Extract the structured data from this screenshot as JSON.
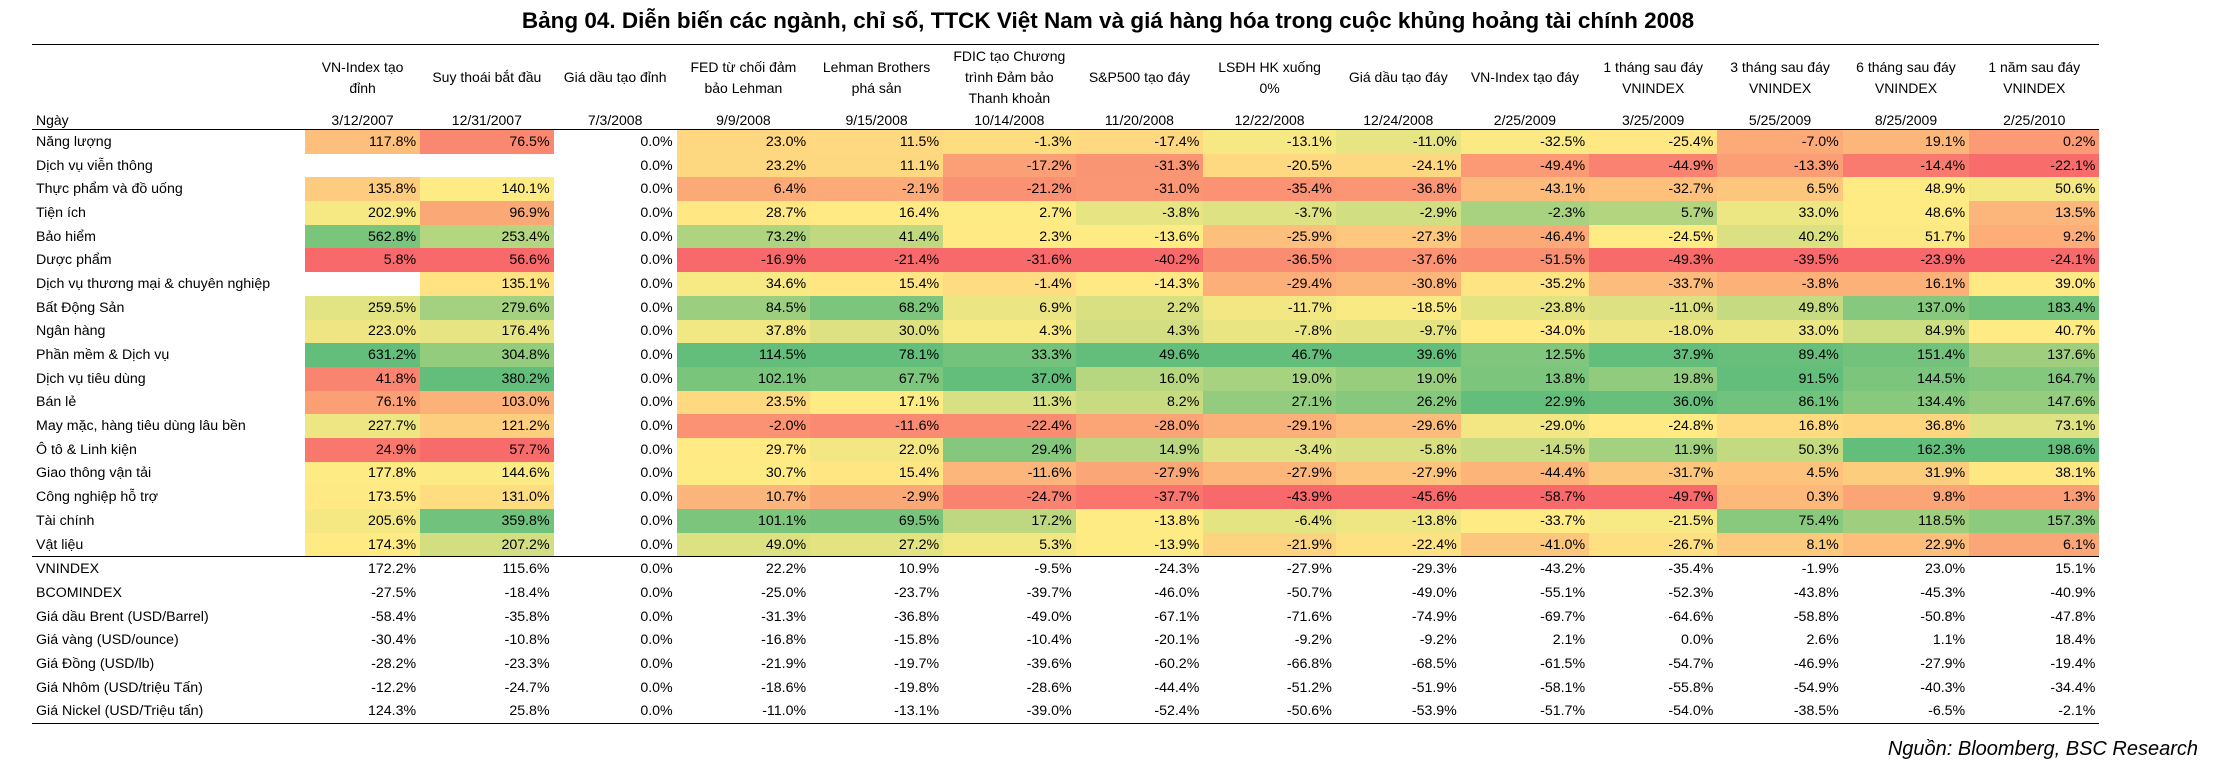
{
  "chart_data": {
    "type": "table",
    "title": "Bảng 04. Diễn biến các ngành, chỉ số, TTCK Việt Nam và giá hàng hóa trong cuộc khủng hoảng tài chính 2008",
    "source": "Nguồn: Bloomberg, BSC Research",
    "row_header_label": "Ngày",
    "columns": [
      {
        "event": "VN-Index tạo đỉnh",
        "date": "3/12/2007"
      },
      {
        "event": "Suy thoái bắt đầu",
        "date": "12/31/2007"
      },
      {
        "event": "Giá dầu tạo đỉnh",
        "date": "7/3/2008"
      },
      {
        "event": "FED từ chối đảm bảo Lehman",
        "date": "9/9/2008"
      },
      {
        "event": "Lehman Brothers phá sản",
        "date": "9/15/2008"
      },
      {
        "event": "FDIC tạo Chương trình Đảm bảo Thanh khoản",
        "date": "10/14/2008"
      },
      {
        "event": "S&P500 tạo đáy",
        "date": "11/20/2008"
      },
      {
        "event": "LSĐH HK xuống 0%",
        "date": "12/22/2008"
      },
      {
        "event": "Giá dầu tạo đáy",
        "date": "12/24/2008"
      },
      {
        "event": "VN-Index tạo đáy",
        "date": "2/25/2009"
      },
      {
        "event": "1 tháng sau đáy VNINDEX",
        "date": "3/25/2009"
      },
      {
        "event": "3 tháng sau đáy VNINDEX",
        "date": "5/25/2009"
      },
      {
        "event": "6 tháng sau đáy VNINDEX",
        "date": "8/25/2009"
      },
      {
        "event": "1 năm sau đáy VNINDEX",
        "date": "2/25/2010"
      }
    ],
    "sectors": [
      {
        "name": "Năng lượng",
        "values": [
          117.8,
          76.5,
          0.0,
          23.0,
          11.5,
          -1.3,
          -17.4,
          -13.1,
          -11.0,
          -32.5,
          -25.4,
          -7.0,
          19.1,
          0.2
        ]
      },
      {
        "name": "Dịch vụ viễn thông",
        "values": [
          null,
          null,
          0.0,
          23.2,
          11.1,
          -17.2,
          -31.3,
          -20.5,
          -24.1,
          -49.4,
          -44.9,
          -13.3,
          -14.4,
          -22.1
        ]
      },
      {
        "name": "Thực phẩm và đồ uống",
        "values": [
          135.8,
          140.1,
          0.0,
          6.4,
          -2.1,
          -21.2,
          -31.0,
          -35.4,
          -36.8,
          -43.1,
          -32.7,
          6.5,
          48.9,
          50.6
        ]
      },
      {
        "name": "Tiện ích",
        "values": [
          202.9,
          96.9,
          0.0,
          28.7,
          16.4,
          2.7,
          -3.8,
          -3.7,
          -2.9,
          -2.3,
          5.7,
          33.0,
          48.6,
          13.5
        ]
      },
      {
        "name": "Bảo hiểm",
        "values": [
          562.8,
          253.4,
          0.0,
          73.2,
          41.4,
          2.3,
          -13.6,
          -25.9,
          -27.3,
          -46.4,
          -24.5,
          40.2,
          51.7,
          9.2
        ]
      },
      {
        "name": "Dược phẩm",
        "values": [
          5.8,
          56.6,
          0.0,
          -16.9,
          -21.4,
          -31.6,
          -40.2,
          -36.5,
          -37.6,
          -51.5,
          -49.3,
          -39.5,
          -23.9,
          -24.1
        ]
      },
      {
        "name": "Dịch vụ thương mại & chuyên nghiệp",
        "values": [
          null,
          135.1,
          0.0,
          34.6,
          15.4,
          -1.4,
          -14.3,
          -29.4,
          -30.8,
          -35.2,
          -33.7,
          -3.8,
          16.1,
          39.0
        ]
      },
      {
        "name": "Bất Động Sản",
        "values": [
          259.5,
          279.6,
          0.0,
          84.5,
          68.2,
          6.9,
          2.2,
          -11.7,
          -18.5,
          -23.8,
          -11.0,
          49.8,
          137.0,
          183.4
        ]
      },
      {
        "name": "Ngân hàng",
        "values": [
          223.0,
          176.4,
          0.0,
          37.8,
          30.0,
          4.3,
          4.3,
          -7.8,
          -9.7,
          -34.0,
          -18.0,
          33.0,
          84.9,
          40.7
        ]
      },
      {
        "name": "Phần mềm & Dịch vụ",
        "values": [
          631.2,
          304.8,
          0.0,
          114.5,
          78.1,
          33.3,
          49.6,
          46.7,
          39.6,
          12.5,
          37.9,
          89.4,
          151.4,
          137.6
        ]
      },
      {
        "name": "Dịch vụ tiêu dùng",
        "values": [
          41.8,
          380.2,
          0.0,
          102.1,
          67.7,
          37.0,
          16.0,
          19.0,
          19.0,
          13.8,
          19.8,
          91.5,
          144.5,
          164.7
        ]
      },
      {
        "name": "Bán lẻ",
        "values": [
          76.1,
          103.0,
          0.0,
          23.5,
          17.1,
          11.3,
          8.2,
          27.1,
          26.2,
          22.9,
          36.0,
          86.1,
          134.4,
          147.6
        ]
      },
      {
        "name": "May mặc, hàng tiêu dùng lâu bền",
        "values": [
          227.7,
          121.2,
          0.0,
          -2.0,
          -11.6,
          -22.4,
          -28.0,
          -29.1,
          -29.6,
          -29.0,
          -24.8,
          16.8,
          36.8,
          73.1
        ]
      },
      {
        "name": "Ô tô & Linh kiện",
        "values": [
          24.9,
          57.7,
          0.0,
          29.7,
          22.0,
          29.4,
          14.9,
          -3.4,
          -5.8,
          -14.5,
          11.9,
          50.3,
          162.3,
          198.6
        ]
      },
      {
        "name": "Giao thông vận tải",
        "values": [
          177.8,
          144.6,
          0.0,
          30.7,
          15.4,
          -11.6,
          -27.9,
          -27.9,
          -27.9,
          -44.4,
          -31.7,
          4.5,
          31.9,
          38.1
        ]
      },
      {
        "name": "Công nghiệp hỗ trợ",
        "values": [
          173.5,
          131.0,
          0.0,
          10.7,
          -2.9,
          -24.7,
          -37.7,
          -43.9,
          -45.6,
          -58.7,
          -49.7,
          0.3,
          9.8,
          1.3
        ]
      },
      {
        "name": "Tài chính",
        "values": [
          205.6,
          359.8,
          0.0,
          101.1,
          69.5,
          17.2,
          -13.8,
          -6.4,
          -13.8,
          -33.7,
          -21.5,
          75.4,
          118.5,
          157.3
        ]
      },
      {
        "name": "Vật liệu",
        "values": [
          174.3,
          207.2,
          0.0,
          49.0,
          27.2,
          5.3,
          -13.9,
          -21.9,
          -22.4,
          -41.0,
          -26.7,
          8.1,
          22.9,
          6.1
        ]
      }
    ],
    "indices": [
      {
        "name": "VNINDEX",
        "values": [
          172.2,
          115.6,
          0.0,
          22.2,
          10.9,
          -9.5,
          -24.3,
          -27.9,
          -29.3,
          -43.2,
          -35.4,
          -1.9,
          23.0,
          15.1
        ]
      },
      {
        "name": "BCOMINDEX",
        "values": [
          -27.5,
          -18.4,
          0.0,
          -25.0,
          -23.7,
          -39.7,
          -46.0,
          -50.7,
          -49.0,
          -55.1,
          -52.3,
          -43.8,
          -45.3,
          -40.9
        ]
      },
      {
        "name": "Giá dầu Brent (USD/Barrel)",
        "values": [
          -58.4,
          -35.8,
          0.0,
          -31.3,
          -36.8,
          -49.0,
          -67.1,
          -71.6,
          -74.9,
          -69.7,
          -64.6,
          -58.8,
          -50.8,
          -47.8
        ]
      },
      {
        "name": "Giá vàng (USD/ounce)",
        "values": [
          -30.4,
          -10.8,
          0.0,
          -16.8,
          -15.8,
          -10.4,
          -20.1,
          -9.2,
          -9.2,
          2.1,
          0.0,
          2.6,
          1.1,
          18.4
        ]
      },
      {
        "name": "Giá Đồng (USD/lb)",
        "values": [
          -28.2,
          -23.3,
          0.0,
          -21.9,
          -19.7,
          -39.6,
          -60.2,
          -66.8,
          -68.5,
          -61.5,
          -54.7,
          -46.9,
          -27.9,
          -19.4
        ]
      },
      {
        "name": "Giá Nhôm (USD/triệu Tấn)",
        "values": [
          -12.2,
          -24.7,
          0.0,
          -18.6,
          -19.8,
          -28.6,
          -44.4,
          -51.2,
          -51.9,
          -58.1,
          -55.8,
          -54.9,
          -40.3,
          -34.4
        ]
      },
      {
        "name": "Giá Nickel (USD/Triệu tấn)",
        "values": [
          124.3,
          25.8,
          0.0,
          -11.0,
          -13.1,
          -39.0,
          -52.4,
          -50.6,
          -53.9,
          -51.7,
          -54.0,
          -38.5,
          -6.5,
          -2.1
        ]
      }
    ],
    "heatmap_colors": {
      "low": "#f8696b",
      "mid": "#ffeb84",
      "high": "#63be7b"
    },
    "heatmap_applies_to": "sectors",
    "heatmap_skipped_column": "Giá dầu tạo đỉnh"
  }
}
